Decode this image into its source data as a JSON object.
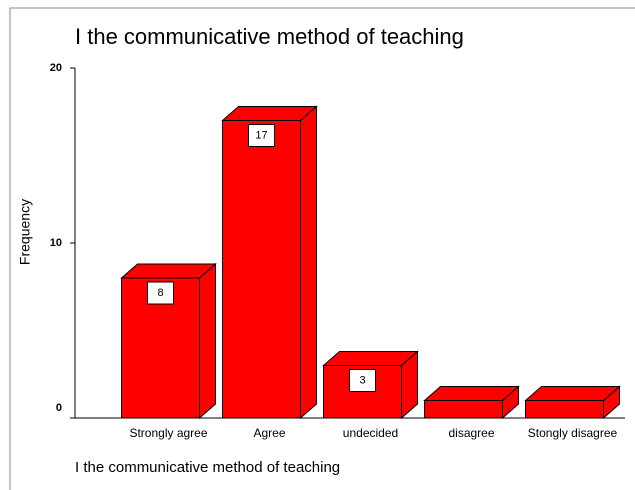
{
  "chart_data": {
    "type": "bar3d",
    "title": "I the communicative method of teaching",
    "x_label": "I the communicative method of teaching",
    "y_label": "Frequency",
    "categories": [
      "Strongly agree",
      "Agree",
      "undecided",
      "disagree",
      "Stongly disagree"
    ],
    "values": [
      8,
      17,
      3,
      1,
      1
    ],
    "color": "#ff0000",
    "ylim": [
      0,
      20
    ],
    "yticks": [
      0,
      10,
      20
    ]
  }
}
